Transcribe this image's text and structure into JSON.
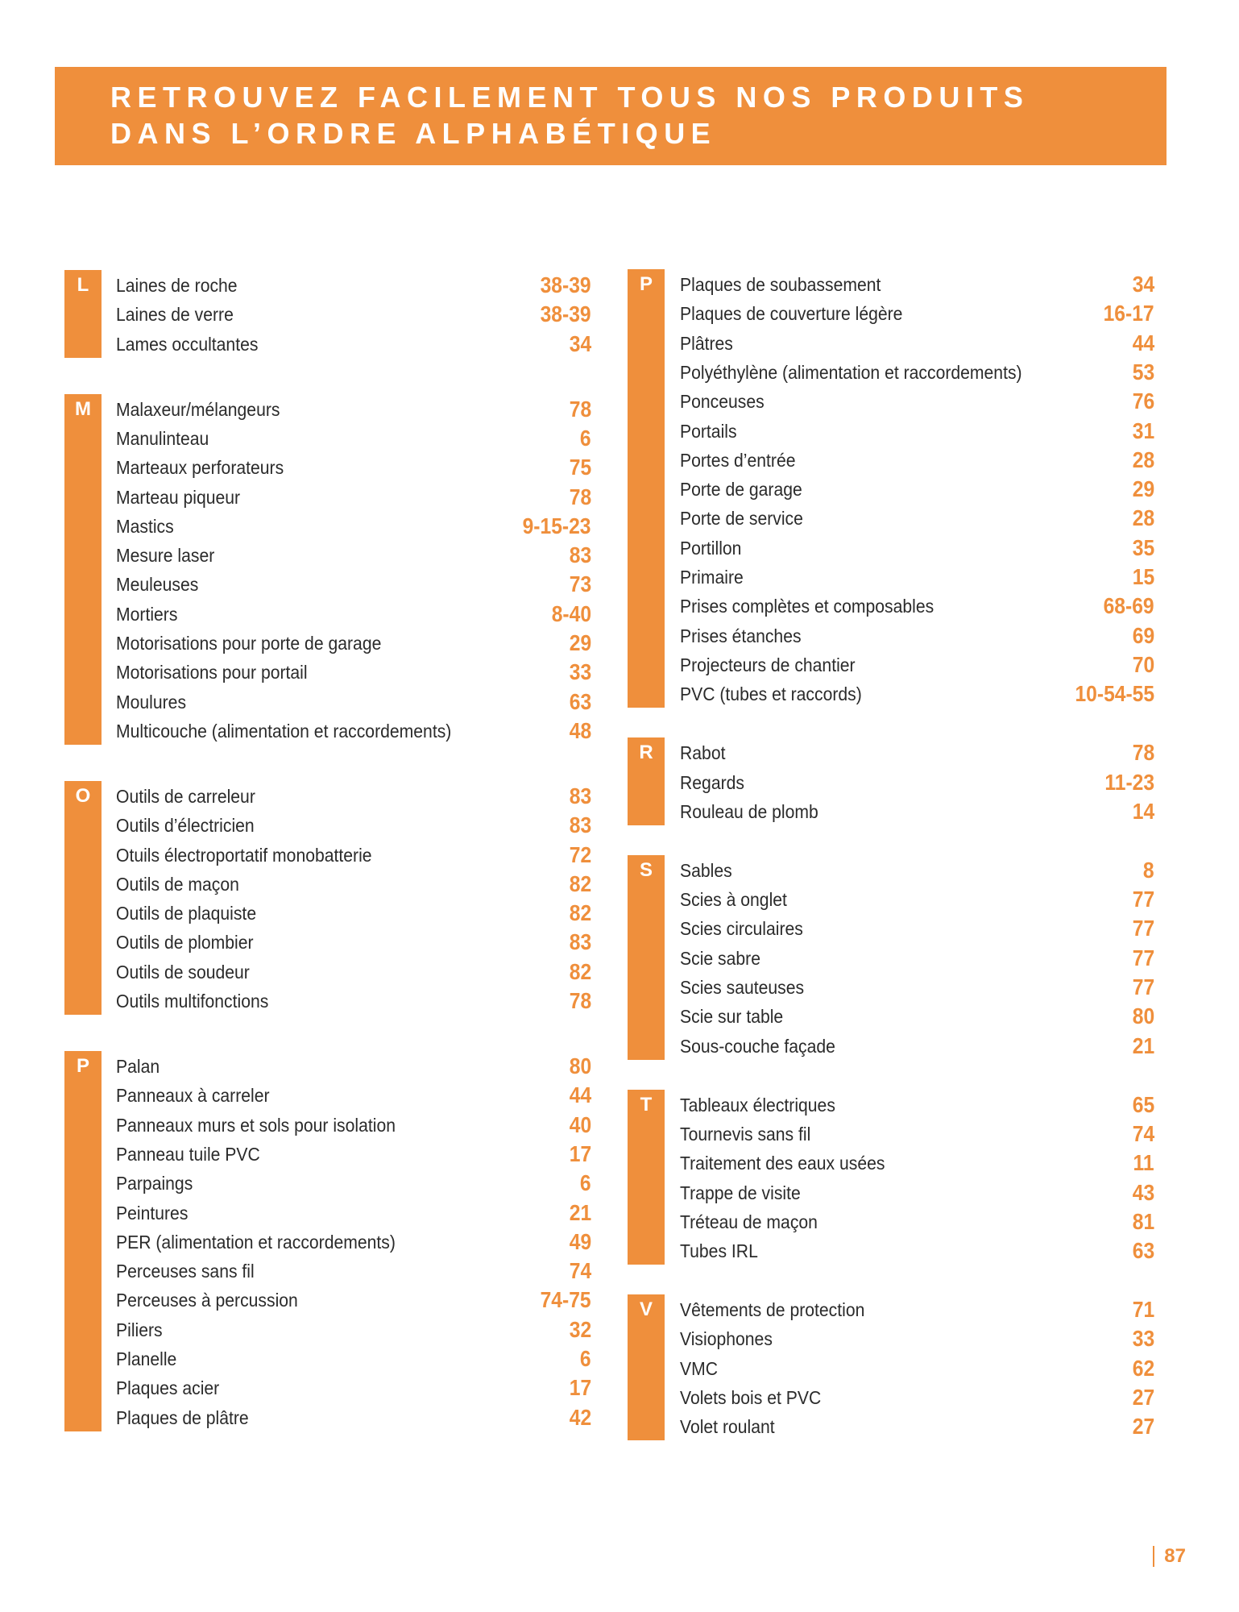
{
  "header": {
    "title": [
      "RETROUVEZ FACILEMENT TOUS NOS PRODUITS",
      "DANS L’ORDRE ALPHABÉTIQUE"
    ]
  },
  "columns": [
    {
      "groups": [
        {
          "letter": "L",
          "items": [
            {
              "name": "Laines de roche",
              "page": "38-39"
            },
            {
              "name": "Laines de verre",
              "page": "38-39"
            },
            {
              "name": "Lames occultantes",
              "page": "34"
            }
          ]
        },
        {
          "letter": "M",
          "items": [
            {
              "name": "Malaxeur/mélangeurs",
              "page": "78"
            },
            {
              "name": "Manulinteau",
              "page": "6"
            },
            {
              "name": "Marteaux perforateurs",
              "page": "75"
            },
            {
              "name": "Marteau piqueur",
              "page": "78"
            },
            {
              "name": "Mastics",
              "page": "9-15-23"
            },
            {
              "name": "Mesure laser",
              "page": "83"
            },
            {
              "name": "Meuleuses",
              "page": "73"
            },
            {
              "name": "Mortiers",
              "page": "8-40"
            },
            {
              "name": "Motorisations pour porte de garage",
              "page": "29"
            },
            {
              "name": "Motorisations pour portail",
              "page": "33"
            },
            {
              "name": "Moulures",
              "page": "63"
            },
            {
              "name": "Multicouche (alimentation et raccordements)",
              "page": "48"
            }
          ]
        },
        {
          "letter": "O",
          "items": [
            {
              "name": "Outils de carreleur",
              "page": "83"
            },
            {
              "name": "Outils d’électricien",
              "page": "83"
            },
            {
              "name": "Otuils électroportatif monobatterie",
              "page": "72"
            },
            {
              "name": "Outils de maçon",
              "page": "82"
            },
            {
              "name": "Outils de plaquiste",
              "page": "82"
            },
            {
              "name": "Outils de plombier",
              "page": "83"
            },
            {
              "name": "Outils de soudeur",
              "page": "82"
            },
            {
              "name": "Outils multifonctions",
              "page": "78"
            }
          ]
        },
        {
          "letter": "P",
          "items": [
            {
              "name": "Palan",
              "page": "80"
            },
            {
              "name": "Panneaux à carreler",
              "page": "44"
            },
            {
              "name": "Panneaux murs et sols pour isolation",
              "page": "40"
            },
            {
              "name": "Panneau tuile PVC",
              "page": "17"
            },
            {
              "name": "Parpaings",
              "page": "6"
            },
            {
              "name": "Peintures",
              "page": "21"
            },
            {
              "name": "PER (alimentation et raccordements)",
              "page": "49"
            },
            {
              "name": "Perceuses sans fil",
              "page": "74"
            },
            {
              "name": "Perceuses à percussion",
              "page": "74-75"
            },
            {
              "name": "Piliers",
              "page": "32"
            },
            {
              "name": "Planelle",
              "page": "6"
            },
            {
              "name": "Plaques acier",
              "page": "17"
            },
            {
              "name": "Plaques de plâtre",
              "page": "42"
            }
          ]
        }
      ]
    },
    {
      "groups": [
        {
          "letter": "P",
          "items": [
            {
              "name": "Plaques de soubassement",
              "page": "34"
            },
            {
              "name": "Plaques de couverture légère",
              "page": "16-17"
            },
            {
              "name": "Plâtres",
              "page": "44"
            },
            {
              "name": "Polyéthylène (alimentation et raccordements)",
              "page": "53"
            },
            {
              "name": "Ponceuses",
              "page": "76"
            },
            {
              "name": "Portails",
              "page": "31"
            },
            {
              "name": "Portes d’entrée",
              "page": "28"
            },
            {
              "name": "Porte de garage",
              "page": "29"
            },
            {
              "name": "Porte de service",
              "page": "28"
            },
            {
              "name": "Portillon",
              "page": "35"
            },
            {
              "name": "Primaire",
              "page": "15"
            },
            {
              "name": "Prises complètes et composables",
              "page": "68-69"
            },
            {
              "name": "Prises étanches",
              "page": "69"
            },
            {
              "name": "Projecteurs de chantier",
              "page": "70"
            },
            {
              "name": "PVC (tubes et raccords)",
              "page": "10-54-55"
            }
          ]
        },
        {
          "letter": "R",
          "items": [
            {
              "name": "Rabot",
              "page": "78"
            },
            {
              "name": "Regards",
              "page": "11-23"
            },
            {
              "name": "Rouleau de plomb",
              "page": "14"
            }
          ]
        },
        {
          "letter": "S",
          "items": [
            {
              "name": "Sables",
              "page": "8"
            },
            {
              "name": "Scies à onglet",
              "page": "77"
            },
            {
              "name": "Scies circulaires",
              "page": "77"
            },
            {
              "name": "Scie sabre",
              "page": "77"
            },
            {
              "name": "Scies sauteuses",
              "page": "77"
            },
            {
              "name": "Scie sur table",
              "page": "80"
            },
            {
              "name": "Sous-couche façade",
              "page": "21"
            }
          ]
        },
        {
          "letter": "T",
          "items": [
            {
              "name": "Tableaux électriques",
              "page": "65"
            },
            {
              "name": "Tournevis sans fil",
              "page": "74"
            },
            {
              "name": "Traitement des eaux usées",
              "page": "11"
            },
            {
              "name": "Trappe de visite",
              "page": "43"
            },
            {
              "name": "Tréteau de maçon",
              "page": "81"
            },
            {
              "name": "Tubes IRL",
              "page": "63"
            }
          ]
        },
        {
          "letter": "V",
          "items": [
            {
              "name": "Vêtements de protection",
              "page": "71"
            },
            {
              "name": "Visiophones",
              "page": "33"
            },
            {
              "name": "VMC",
              "page": "62"
            },
            {
              "name": "Volets bois et PVC",
              "page": "27"
            },
            {
              "name": "Volet roulant",
              "page": "27"
            }
          ]
        }
      ]
    }
  ],
  "footer": {
    "page_number": "87"
  }
}
